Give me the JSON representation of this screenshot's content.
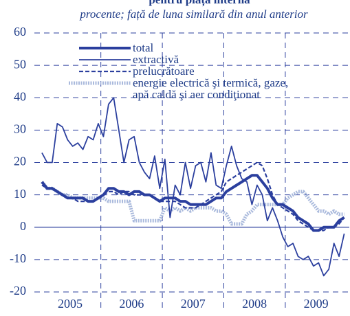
{
  "chart_data": {
    "type": "line",
    "title": "pentru piața internă",
    "subtitle": "procente; față de luna similară din anul anterior",
    "categories": [
      null,
      null,
      null,
      null,
      null,
      null,
      null,
      null,
      null,
      null,
      null,
      null,
      null,
      null,
      null,
      null,
      null,
      null,
      null,
      null,
      null,
      null,
      null,
      null,
      null,
      null,
      null,
      null,
      null,
      null,
      null,
      null,
      null,
      null,
      null,
      null,
      null,
      null,
      null,
      null,
      null,
      null,
      null,
      null,
      null,
      null,
      null,
      null,
      null,
      null,
      null,
      null,
      null,
      null,
      null,
      null,
      null,
      null,
      null,
      null
    ],
    "year_labels": [
      "2005",
      "2006",
      "2007",
      "2008",
      "2009"
    ],
    "ylim": [
      -20,
      60
    ],
    "yticks": [
      -20,
      -10,
      0,
      10,
      20,
      30,
      40,
      50,
      60
    ],
    "grid": true,
    "series": [
      {
        "name": "total",
        "color": "#2b3f9e",
        "style": "thick",
        "values": [
          14,
          12,
          12,
          11,
          10,
          9,
          9,
          9,
          9,
          8,
          8,
          9,
          10,
          12,
          12,
          11,
          11,
          10,
          11,
          11,
          10,
          10,
          9,
          8,
          9,
          9,
          9,
          8,
          8,
          7,
          7,
          7,
          7,
          8,
          9,
          9,
          11,
          12,
          13,
          14,
          15,
          16,
          16,
          14,
          12,
          9,
          7,
          7,
          6,
          5,
          3,
          2,
          1,
          -1,
          -1,
          0,
          0,
          0,
          2,
          3
        ]
      },
      {
        "name": "extractivă",
        "color": "#2b3f9e",
        "style": "solid",
        "values": [
          23,
          20,
          20,
          32,
          31,
          27,
          25,
          26,
          24,
          28,
          27,
          32,
          28,
          38,
          40,
          30,
          20,
          27,
          28,
          20,
          17,
          15,
          22,
          12,
          21,
          3,
          13,
          10,
          20,
          12,
          19,
          20,
          14,
          23,
          13,
          12,
          19,
          25,
          19,
          15,
          14,
          7,
          13,
          10,
          2,
          6,
          2,
          -3,
          -6,
          -5,
          -9,
          -10,
          -9,
          -12,
          -11,
          -15,
          -13,
          -5,
          -9,
          -2
        ]
      },
      {
        "name": "prelucrătoare",
        "color": "#2b3f9e",
        "style": "dashed",
        "values": [
          13,
          12,
          12,
          11,
          10,
          9,
          9,
          8,
          8,
          8,
          8,
          9,
          10,
          11,
          11,
          10,
          11,
          11,
          10,
          10,
          10,
          10,
          9,
          8,
          8,
          8,
          8,
          7,
          6,
          6,
          6,
          7,
          8,
          9,
          10,
          11,
          14,
          15,
          16,
          17,
          18,
          19,
          20,
          19,
          15,
          10,
          7,
          6,
          5,
          4,
          2,
          1,
          0,
          -1,
          -1,
          -1,
          0,
          0,
          1,
          3
        ]
      },
      {
        "name": "energie electrică şi termică, gaze,\napă caldă şi aer condiţionat",
        "color": "#a9b9dc",
        "style": "dotted",
        "values": [
          14,
          12,
          12,
          11,
          10,
          10,
          9,
          9,
          9,
          9,
          9,
          9,
          9,
          8,
          8,
          8,
          8,
          8,
          2,
          2,
          2,
          2,
          2,
          2,
          6,
          5,
          6,
          5,
          6,
          5,
          6,
          6,
          6,
          6,
          5,
          5,
          4,
          1,
          1,
          1,
          4,
          5,
          7,
          7,
          7,
          7,
          7,
          7,
          9,
          10,
          11,
          11,
          9,
          7,
          5,
          5,
          4,
          5,
          4,
          4
        ]
      }
    ]
  }
}
